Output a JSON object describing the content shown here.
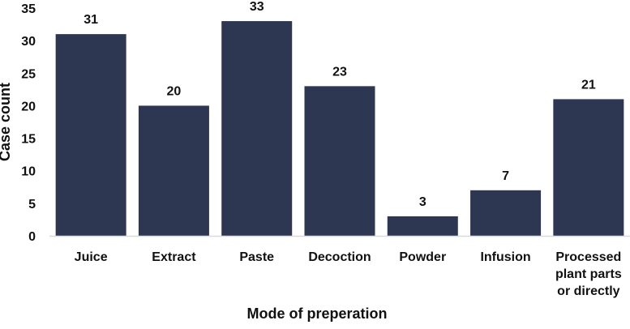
{
  "chart_data": {
    "type": "bar",
    "categories": [
      "Juice",
      "Extract",
      "Paste",
      "Decoction",
      "Powder",
      "Infusion",
      "Processed plant parts or directly"
    ],
    "category_lines": [
      [
        "Juice"
      ],
      [
        "Extract"
      ],
      [
        "Paste"
      ],
      [
        "Decoction"
      ],
      [
        "Powder"
      ],
      [
        "Infusion"
      ],
      [
        "Processed",
        "plant parts",
        "or directly"
      ]
    ],
    "values": [
      31,
      20,
      33,
      23,
      3,
      7,
      21
    ],
    "data_labels": [
      "31",
      "20",
      "33",
      "23",
      "3",
      "7",
      "21"
    ],
    "xlabel": "Mode of preperation",
    "ylabel": "Case count",
    "ylim": [
      0,
      35
    ],
    "yticks": [
      0,
      5,
      10,
      15,
      20,
      25,
      30,
      35
    ],
    "grid": false,
    "legend": "none",
    "colors": {
      "bar": "#2e3752",
      "axis": "#d9d9d9",
      "text": "#111111"
    }
  }
}
